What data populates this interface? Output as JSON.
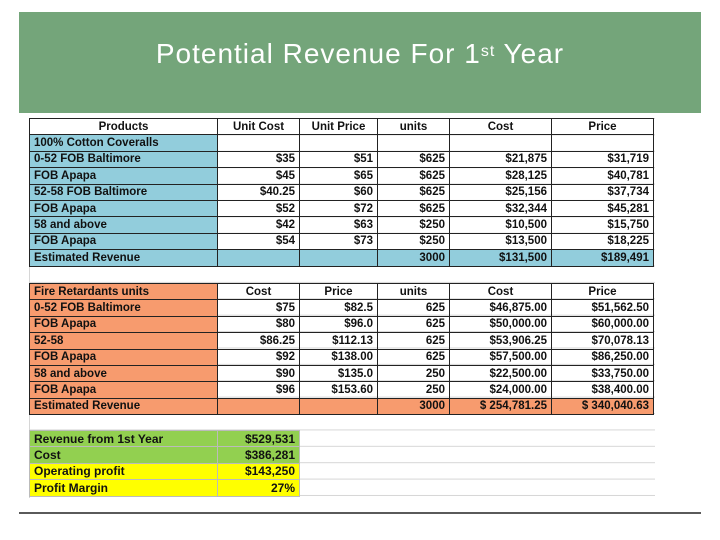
{
  "slide": {
    "title_main": "Potential Revenue For 1",
    "title_sup": "st",
    "title_end": " Year"
  },
  "table1": {
    "headers": [
      "Products",
      "Unit Cost",
      "Unit Price",
      "units",
      "Cost",
      "Price"
    ],
    "rows": [
      [
        "100% Cotton Coveralls",
        "",
        "",
        "",
        "",
        ""
      ],
      [
        "0-52 FOB Baltimore",
        "$35",
        "$51",
        "$625",
        "$21,875",
        "$31,719"
      ],
      [
        "FOB Apapa",
        "$45",
        "$65",
        "$625",
        "$28,125",
        "$40,781"
      ],
      [
        "52-58 FOB Baltimore",
        "$40.25",
        "$60",
        "$625",
        "$25,156",
        "$37,734"
      ],
      [
        "FOB Apapa",
        "$52",
        "$72",
        "$625",
        "$32,344",
        "$45,281"
      ],
      [
        "58 and above",
        "$42",
        "$63",
        "$250",
        "$10,500",
        "$15,750"
      ],
      [
        "FOB Apapa",
        "$54",
        "$73",
        "$250",
        "$13,500",
        "$18,225"
      ],
      [
        "Estimated Revenue",
        "",
        "",
        "3000",
        "$131,500",
        "$189,491"
      ]
    ]
  },
  "table2": {
    "headers": [
      "Fire Retardants units",
      "Cost",
      "Price",
      "units",
      "Cost",
      "Price"
    ],
    "rows": [
      [
        "0-52 FOB Baltimore",
        "$75",
        "$82.5",
        "625",
        "$46,875.00",
        "$51,562.50"
      ],
      [
        "FOB Apapa",
        "$80",
        "$96.0",
        "625",
        "$50,000.00",
        "$60,000.00"
      ],
      [
        "52-58",
        "$86.25",
        "$112.13",
        "625",
        "$53,906.25",
        "$70,078.13"
      ],
      [
        "FOB Apapa",
        "$92",
        "$138.00",
        "625",
        "$57,500.00",
        "$86,250.00"
      ],
      [
        "58 and above",
        "$90",
        "$135.0",
        "250",
        "$22,500.00",
        "$33,750.00"
      ],
      [
        "FOB Apapa",
        "$96",
        "$153.60",
        "250",
        "$24,000.00",
        "$38,400.00"
      ],
      [
        "Estimated Revenue",
        "",
        "",
        "3000",
        "$ 254,781.25",
        "$ 340,040.63"
      ]
    ]
  },
  "summary": [
    [
      "Revenue from 1st Year",
      "$529,531"
    ],
    [
      "Cost",
      "$386,281"
    ],
    [
      "Operating profit",
      "$143,250"
    ],
    [
      "Profit Margin",
      "27%"
    ]
  ],
  "colors": {
    "banner": "#74a57a",
    "blue": "#92cddc",
    "orange": "#f79b6e",
    "green": "#92d050",
    "yellow": "#ffff00"
  }
}
